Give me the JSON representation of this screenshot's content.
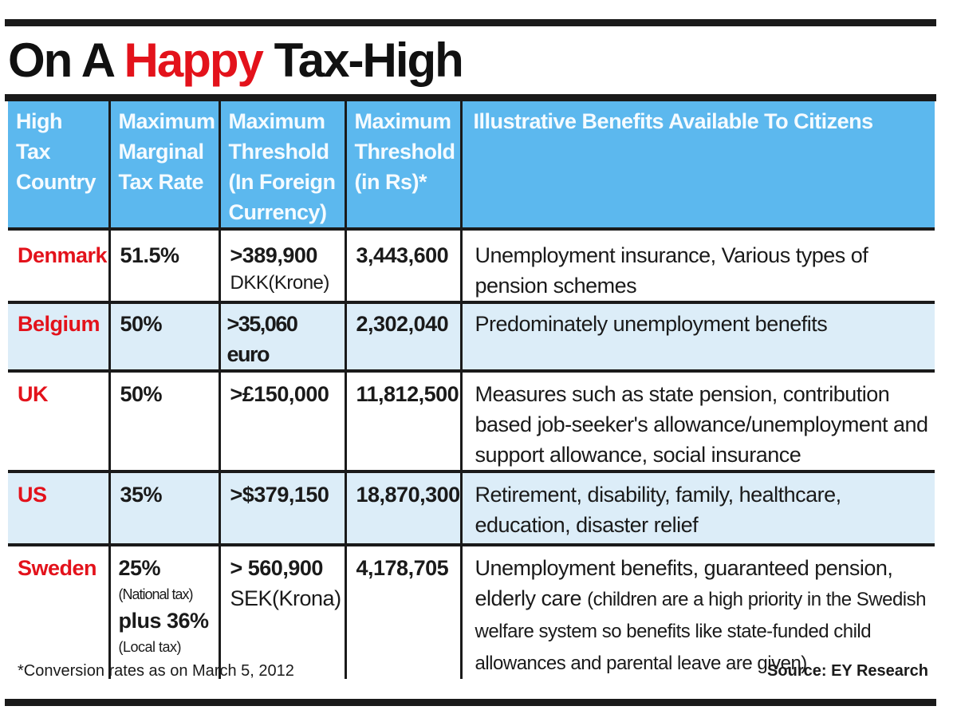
{
  "title": {
    "part1": "On A ",
    "highlight": "Happy",
    "part2": " Tax-High"
  },
  "colors": {
    "header_bg": "#5cb8ee",
    "country_red": "#e3121b",
    "row_shade": "#dcedf8",
    "rule": "#1a1a1a"
  },
  "table": {
    "headers": [
      "High Tax Country",
      "Maximum Marginal Tax Rate",
      "Maximum Threshold (In Foreign Currency)",
      "Maximum Threshold (in Rs)*",
      "Illustrative Benefits Available To Citizens"
    ],
    "rows": [
      {
        "country": "Denmark",
        "rate": "51.5%",
        "threshold_main": ">389,900",
        "threshold_sub": "DKK(Krone)",
        "threshold_rs": "3,443,600",
        "benefits": "Unemployment insurance, Various types of pension schemes"
      },
      {
        "country": "Belgium",
        "rate": "50%",
        "threshold_main": ">35,060 euro",
        "threshold_sub": "",
        "threshold_rs": "2,302,040",
        "benefits": "Predominately unemployment benefits"
      },
      {
        "country": "UK",
        "rate": "50%",
        "threshold_main": ">£150,000",
        "threshold_sub": "",
        "threshold_rs": "11,812,500",
        "benefits": "Measures such as state pension, contribution based job-seeker's allowance/unemployment and support allowance, social insurance"
      },
      {
        "country": "US",
        "rate": "35%",
        "threshold_main": ">$379,150",
        "threshold_sub": "",
        "threshold_rs": "18,870,300",
        "benefits": "Retirement, disability, family, healthcare, education, disaster relief"
      },
      {
        "country": "Sweden",
        "rate": "25%",
        "rate_note1": "(National tax)",
        "rate_extra": "plus 36%",
        "rate_note2": "(Local tax)",
        "threshold_main": "> 560,900",
        "threshold_sub": "SEK(Krona)",
        "threshold_rs": "4,178,705",
        "benefits": "Unemployment benefits, guaranteed pension, elderly care",
        "benefits_note": "(children are a high priority in the Swedish welfare system so benefits like state-funded child allowances and parental leave are given)"
      }
    ]
  },
  "footnote": "*Conversion rates as on March 5, 2012",
  "source": "Source: EY Research"
}
